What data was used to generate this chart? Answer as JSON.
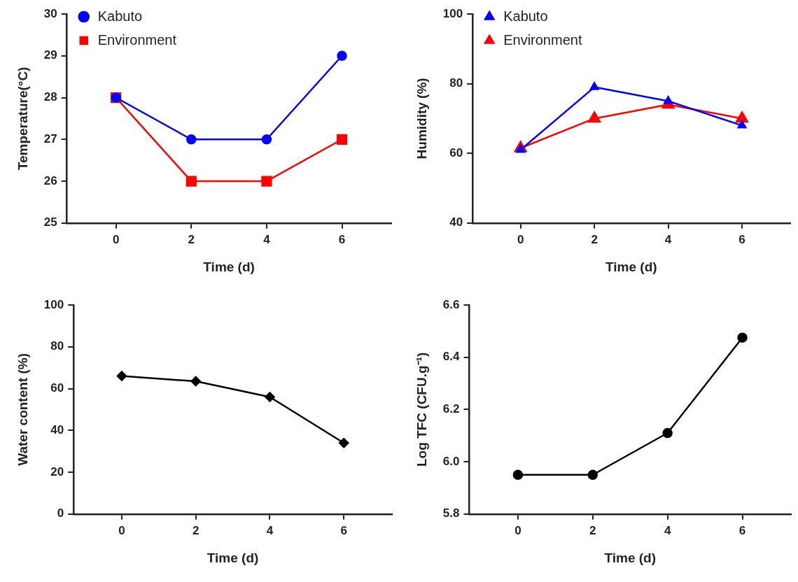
{
  "chart_data": [
    {
      "type": "line",
      "xlabel": "Time (d)",
      "ylabel": "Temperature(°C)",
      "x": [
        0,
        2,
        4,
        6
      ],
      "xlim": [
        -1.3,
        7.3
      ],
      "xticks": [
        0,
        2,
        4,
        6
      ],
      "ylim": [
        25,
        30
      ],
      "yticks": [
        25,
        26,
        27,
        28,
        29,
        30
      ],
      "grid": false,
      "legend": "top left",
      "series": [
        {
          "name": "Kabuto",
          "color": "#0000ff",
          "marker": "circle",
          "values": [
            28,
            27,
            27,
            29
          ]
        },
        {
          "name": "Environment",
          "color": "#ff0000",
          "marker": "square",
          "values": [
            28,
            26,
            26,
            27
          ]
        }
      ]
    },
    {
      "type": "line",
      "xlabel": "Time (d)",
      "ylabel": "Humidity (%)",
      "x": [
        0,
        2,
        4,
        6
      ],
      "xlim": [
        -1.3,
        7.3
      ],
      "xticks": [
        0,
        2,
        4,
        6
      ],
      "ylim": [
        40,
        100
      ],
      "yticks": [
        40,
        60,
        80,
        100
      ],
      "grid": false,
      "legend": "top left",
      "series": [
        {
          "name": "Kabuto",
          "color": "#0000ff",
          "marker": "triangle",
          "values": [
            61,
            79,
            75,
            68
          ]
        },
        {
          "name": "Environment",
          "color": "#ff0000",
          "marker": "triangle",
          "values": [
            61.5,
            70,
            74,
            70
          ]
        }
      ]
    },
    {
      "type": "line",
      "xlabel": "Time (d)",
      "ylabel": "Water content (%)",
      "x": [
        0,
        2,
        4,
        6
      ],
      "xlim": [
        -1.3,
        7.3
      ],
      "xticks": [
        0,
        2,
        4,
        6
      ],
      "ylim": [
        0,
        100
      ],
      "yticks": [
        0,
        20,
        40,
        60,
        80,
        100
      ],
      "grid": false,
      "legend": false,
      "series": [
        {
          "color": "#000000",
          "marker": "diamond",
          "values": [
            66,
            63.5,
            56,
            34
          ]
        }
      ]
    },
    {
      "type": "line",
      "xlabel": "Time (d)",
      "ylabel": "Log TFC (CFU.g⁻¹)",
      "x": [
        0,
        2,
        4,
        6
      ],
      "xlim": [
        -1.3,
        7.3
      ],
      "xticks": [
        0,
        2,
        4,
        6
      ],
      "ylim": [
        5.8,
        6.6
      ],
      "yticks": [
        {
          "value": 5.8,
          "label": "5.8"
        },
        {
          "value": 6.0,
          "label": "6.0"
        },
        {
          "value": 6.2,
          "label": "6.2"
        },
        {
          "value": 6.4,
          "label": "6.4"
        },
        {
          "value": 6.6,
          "label": "6.6"
        }
      ],
      "grid": false,
      "legend": false,
      "series": [
        {
          "color": "#000000",
          "marker": "circle",
          "values": [
            5.95,
            5.95,
            6.11,
            6.475
          ]
        }
      ]
    }
  ]
}
